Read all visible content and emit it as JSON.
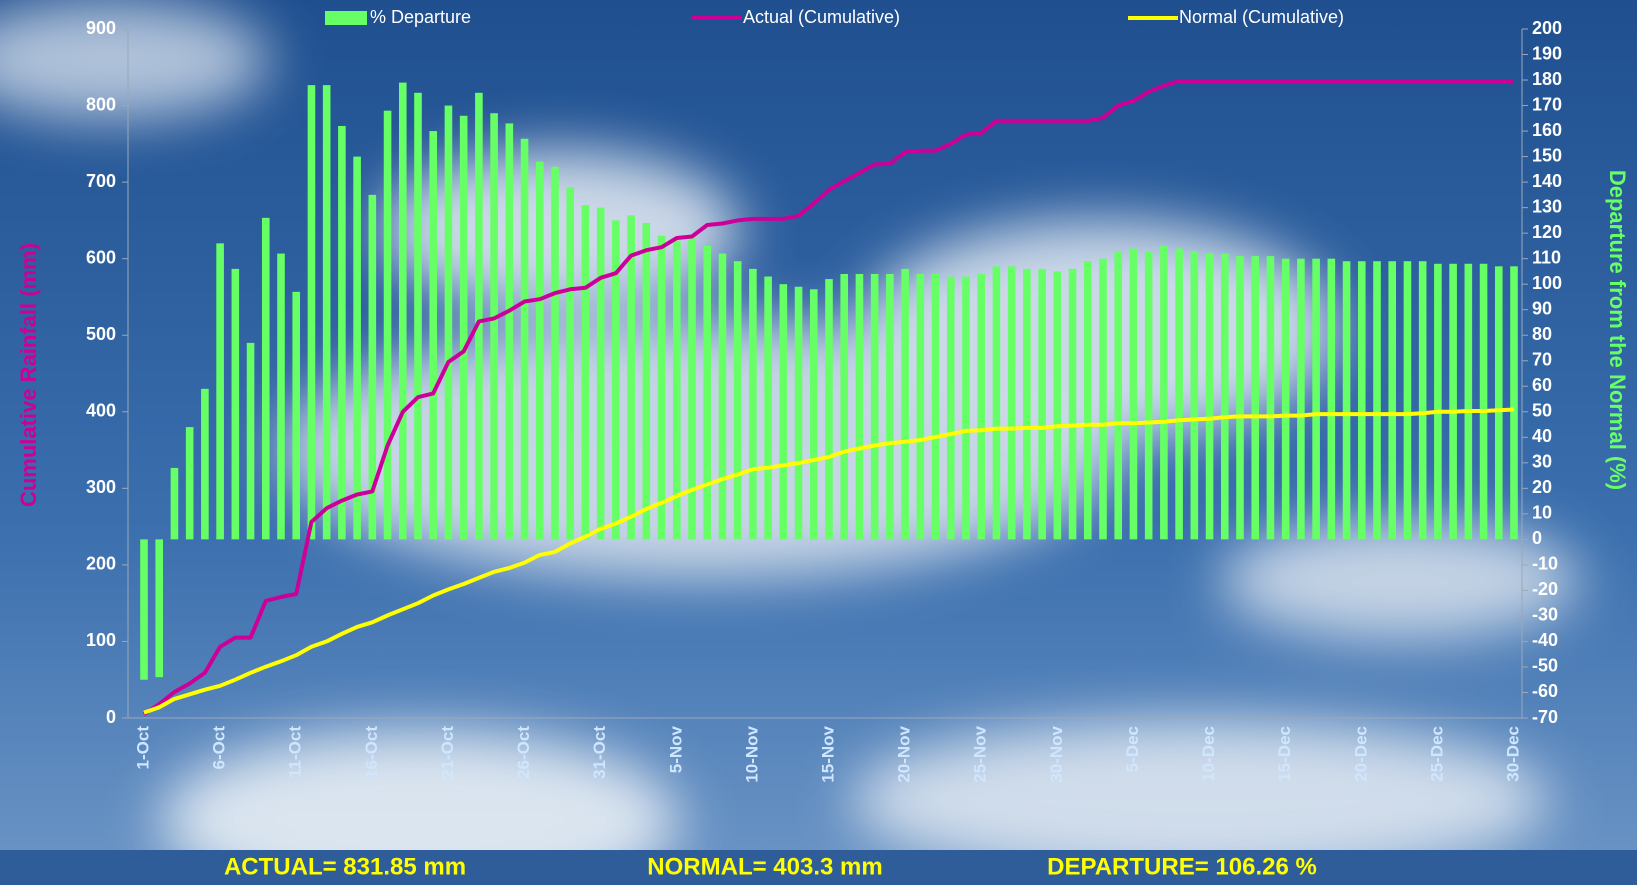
{
  "chart_data": {
    "type": "bar",
    "ylabel": "Cumulative Rainfall (mm)",
    "y2label": "Departure from the Normal (%)",
    "categories": [
      "1-Oct",
      null,
      null,
      null,
      null,
      "6-Oct",
      null,
      null,
      null,
      null,
      "11-Oct",
      null,
      null,
      null,
      null,
      "16-Oct",
      null,
      null,
      null,
      null,
      "21-Oct",
      null,
      null,
      null,
      null,
      "26-Oct",
      null,
      null,
      null,
      null,
      "31-Oct",
      null,
      null,
      null,
      null,
      "5-Nov",
      null,
      null,
      null,
      null,
      "10-Nov",
      null,
      null,
      null,
      null,
      "15-Nov",
      null,
      null,
      null,
      null,
      "20-Nov",
      null,
      null,
      null,
      null,
      "25-Nov",
      null,
      null,
      null,
      null,
      "30-Nov",
      null,
      null,
      null,
      null,
      "5-Dec",
      null,
      null,
      null,
      null,
      "10-Dec",
      null,
      null,
      null,
      null,
      "15-Dec",
      null,
      null,
      null,
      null,
      "20-Dec",
      null,
      null,
      null,
      null,
      "25-Dec",
      null,
      null,
      null,
      null,
      "30-Dec"
    ],
    "series": [
      {
        "name": "% Departure",
        "type": "bar",
        "axis": "y2",
        "color": "#66ff66",
        "values": [
          -55,
          -54,
          28,
          44,
          59,
          116,
          106,
          77,
          126,
          112,
          97,
          178,
          178,
          162,
          150,
          135,
          168,
          179,
          175,
          160,
          170,
          166,
          175,
          167,
          163,
          157,
          148,
          146,
          138,
          131,
          130,
          125,
          127,
          124,
          119,
          117,
          118,
          115,
          112,
          109,
          106,
          103,
          100,
          99,
          98,
          102,
          104,
          104,
          104,
          104,
          106,
          104,
          104,
          103,
          103,
          104,
          107,
          107,
          106,
          106,
          105,
          106,
          109,
          110,
          113,
          114,
          113,
          115,
          114,
          113,
          112,
          112,
          111,
          111,
          111,
          110,
          110,
          110,
          110,
          109,
          109,
          109,
          109,
          109,
          109,
          108,
          108,
          108,
          108,
          107,
          107
        ]
      },
      {
        "name": "Actual (Cumulative)",
        "type": "line",
        "color": "#cc0099",
        "values": [
          5,
          18,
          34,
          45,
          59,
          93,
          105,
          105,
          153,
          158,
          162,
          256,
          274,
          284,
          292,
          296,
          356,
          400,
          419,
          424,
          465,
          479,
          518,
          522,
          532,
          544,
          547,
          555,
          560,
          562,
          575,
          581,
          604,
          611,
          615,
          627,
          629,
          644,
          646,
          650,
          652,
          652,
          652,
          656,
          672,
          690,
          701,
          712,
          723,
          724,
          739,
          741,
          741,
          750,
          762,
          764,
          780,
          780,
          780,
          780,
          780,
          780,
          780,
          784,
          800,
          806,
          818,
          826,
          832,
          832,
          832,
          832,
          832,
          832,
          832,
          832,
          832,
          832,
          832,
          832,
          832,
          832,
          832,
          832,
          832,
          832,
          832,
          832,
          832,
          832,
          832
        ]
      },
      {
        "name": "Normal (Cumulative)",
        "type": "line",
        "color": "#ffff00",
        "values": [
          7,
          14,
          25,
          31,
          37,
          42,
          50,
          59,
          67,
          74,
          82,
          93,
          100,
          110,
          119,
          125,
          134,
          142,
          150,
          160,
          168,
          175,
          183,
          191,
          196,
          203,
          213,
          217,
          228,
          237,
          247,
          254,
          263,
          273,
          281,
          290,
          298,
          305,
          312,
          318,
          325,
          327,
          330,
          333,
          337,
          341,
          348,
          352,
          356,
          359,
          361,
          363,
          367,
          371,
          375,
          376,
          378,
          378,
          379,
          379,
          381,
          382,
          383,
          383,
          385,
          385,
          386,
          387,
          389,
          390,
          391,
          393,
          394,
          394,
          394,
          395,
          395,
          397,
          397,
          397,
          397,
          397,
          397,
          397,
          398,
          400,
          400,
          401,
          401,
          402,
          403
        ]
      }
    ],
    "ylim": [
      0,
      900
    ],
    "yticks": [
      0,
      100,
      200,
      300,
      400,
      500,
      600,
      700,
      800,
      900
    ],
    "y2lim": [
      -70,
      200
    ],
    "y2ticks": [
      -70,
      -60,
      -50,
      -40,
      -30,
      -20,
      -10,
      0,
      10,
      20,
      30,
      40,
      50,
      60,
      70,
      80,
      90,
      100,
      110,
      120,
      130,
      140,
      150,
      160,
      170,
      180,
      190,
      200
    ],
    "legend": "top",
    "annotations": [
      "ACTUAL= 831.85 mm",
      "NORMAL= 403.3 mm",
      "DEPARTURE= 106.26 %"
    ]
  }
}
